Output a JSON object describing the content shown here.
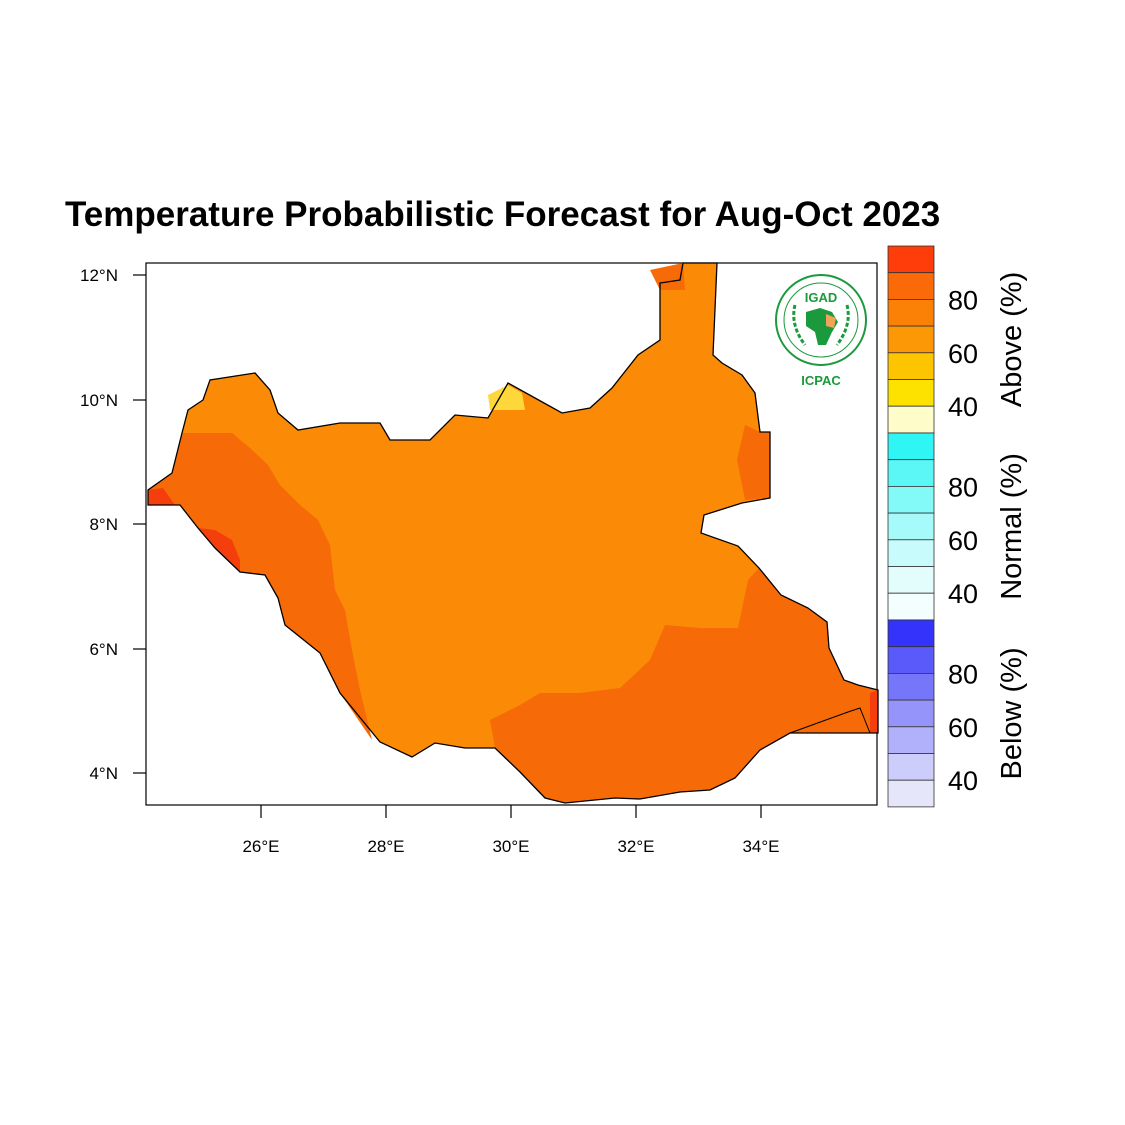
{
  "title": "Temperature Probabilistic Forecast for Aug-Oct 2023",
  "map": {
    "lat_ticks": [
      "12°N",
      "10°N",
      "8°N",
      "6°N",
      "4°N"
    ],
    "lon_ticks": [
      "26°E",
      "28°E",
      "30°E",
      "32°E",
      "34°E"
    ],
    "region": "South Sudan",
    "region_colors": {
      "zone_60_70": "#fb8a06",
      "zone_70_80": "#f76a08",
      "zone_80_plus": "#f43f0c",
      "zone_40_50": "#fed83a",
      "boundary": "#000000"
    }
  },
  "logo": {
    "top_text": "IGAD",
    "bottom_text": "ICPAC"
  },
  "colorbars": [
    {
      "title": "Above (%)",
      "labels": [
        "80",
        "60",
        "40"
      ],
      "colors": [
        "#fe3d0a",
        "#fb6a08",
        "#fb8006",
        "#fc9806",
        "#fdc500",
        "#fde200",
        "#fefcc8"
      ]
    },
    {
      "title": "Normal (%)",
      "labels": [
        "80",
        "60",
        "40"
      ],
      "colors": [
        "#2ff5f5",
        "#5bf7f6",
        "#83f9f8",
        "#a6fbfa",
        "#c8fcfc",
        "#e3fdfd",
        "#f3fefe"
      ]
    },
    {
      "title": "Below (%)",
      "labels": [
        "80",
        "60",
        "40"
      ],
      "colors": [
        "#3333fb",
        "#5a5afb",
        "#7676fb",
        "#9494fb",
        "#b1b1fb",
        "#cdcdfb",
        "#e6e6fb"
      ]
    }
  ]
}
